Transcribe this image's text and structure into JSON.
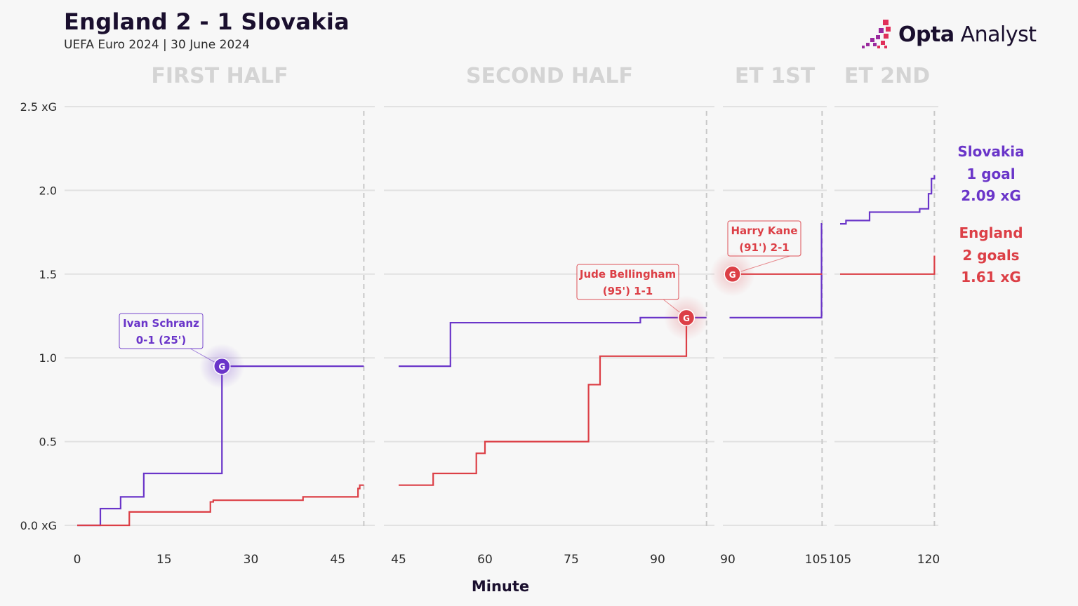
{
  "header": {
    "title": "England 2 - 1 Slovakia",
    "subtitle": "UEFA Euro 2024 | 30 June 2024"
  },
  "brand": {
    "strong": "Opta",
    "light": " Analyst"
  },
  "legend": {
    "slovakia": {
      "team": "Slovakia",
      "goals": "1 goal",
      "xg": "2.09 xG",
      "color": "#6a35c9"
    },
    "england": {
      "team": "England",
      "goals": "2 goals",
      "xg": "1.61 xG",
      "color": "#dc3f46"
    }
  },
  "chart_data": {
    "type": "line",
    "subtype": "step",
    "title": "England 2 - 1 Slovakia",
    "xlabel": "Minute",
    "ylabel": "xG",
    "ylim": [
      0,
      2.5
    ],
    "yticks": [
      {
        "v": 0,
        "label": "0.0 xG"
      },
      {
        "v": 0.5,
        "label": "0.5"
      },
      {
        "v": 1.0,
        "label": "1.0"
      },
      {
        "v": 1.5,
        "label": "1.5"
      },
      {
        "v": 2.0,
        "label": "2.0"
      },
      {
        "v": 2.5,
        "label": "2.5 xG"
      }
    ],
    "periods": [
      {
        "label": "FIRST HALF",
        "start": 0,
        "end": 49.5,
        "ticks": [
          0,
          15,
          30,
          45
        ]
      },
      {
        "label": "SECOND HALF",
        "start": 45,
        "end": 98.5,
        "ticks": [
          45,
          60,
          75,
          90
        ]
      },
      {
        "label": "ET 1ST",
        "start": 90,
        "end": 106,
        "ticks": [
          90,
          105
        ]
      },
      {
        "label": "ET 2ND",
        "start": 105,
        "end": 121,
        "ticks": [
          105,
          120
        ]
      }
    ],
    "series": [
      {
        "name": "Slovakia",
        "color": "#6a35c9",
        "periods": [
          [
            [
              0,
              0
            ],
            [
              4,
              0.1
            ],
            [
              7.5,
              0.17
            ],
            [
              11.5,
              0.31
            ],
            [
              25,
              0.95
            ],
            [
              49.5,
              0.95
            ]
          ],
          [
            [
              45,
              0.95
            ],
            [
              54,
              1.21
            ],
            [
              87,
              1.24
            ],
            [
              98.5,
              1.24
            ]
          ],
          [
            [
              90.3,
              1.24
            ],
            [
              105.9,
              1.8
            ],
            [
              106,
              1.8
            ]
          ],
          [
            [
              105,
              1.8
            ],
            [
              106,
              1.82
            ],
            [
              110,
              1.87
            ],
            [
              118.5,
              1.89
            ],
            [
              120,
              1.98
            ],
            [
              120.5,
              2.07
            ],
            [
              121,
              2.09
            ]
          ]
        ]
      },
      {
        "name": "England",
        "color": "#dc3f46",
        "periods": [
          [
            [
              0,
              0
            ],
            [
              9,
              0.08
            ],
            [
              23,
              0.14
            ],
            [
              23.5,
              0.15
            ],
            [
              39,
              0.17
            ],
            [
              48.5,
              0.22
            ],
            [
              48.8,
              0.24
            ],
            [
              49.5,
              0.24
            ]
          ],
          [
            [
              45,
              0.24
            ],
            [
              51,
              0.31
            ],
            [
              58.5,
              0.43
            ],
            [
              60,
              0.5
            ],
            [
              78,
              0.84
            ],
            [
              80,
              1.01
            ],
            [
              95,
              1.24
            ],
            [
              96,
              1.24
            ]
          ],
          [
            [
              90.8,
              1.5
            ],
            [
              106,
              1.5
            ]
          ],
          [
            [
              105,
              1.5
            ],
            [
              121,
              1.61
            ]
          ]
        ]
      }
    ],
    "goals": [
      {
        "team": "Slovakia",
        "minute": 25,
        "xg": 0.95,
        "icon": "G",
        "line1": "Ivan Schranz",
        "line2": "0-1 (25')"
      },
      {
        "team": "England",
        "minute": 95,
        "xg": 1.24,
        "icon": "G",
        "line1": "Jude Bellingham",
        "line2": "(95') 1-1"
      },
      {
        "team": "England",
        "minute": 90.8,
        "xg": 1.5,
        "icon": "G",
        "line1": "Harry Kane",
        "line2": "(91') 2-1"
      }
    ]
  }
}
